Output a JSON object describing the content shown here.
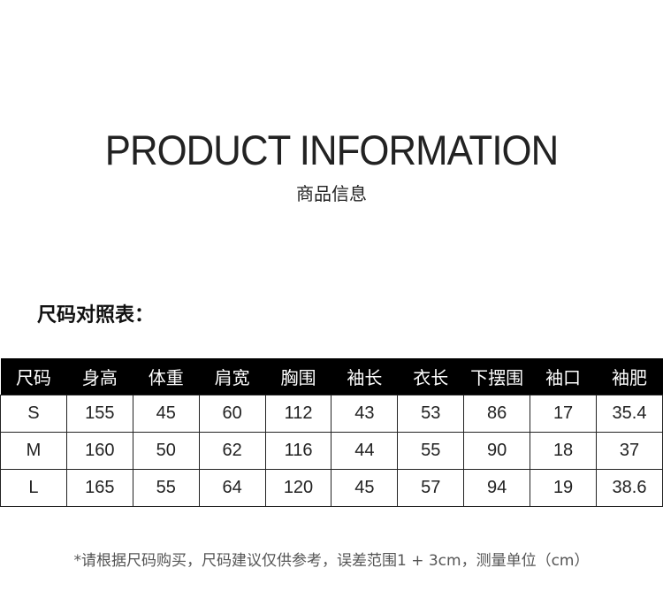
{
  "header": {
    "title": "PRODUCT INFORMATION",
    "subtitle": "商品信息"
  },
  "section_label": "尺码对照表：",
  "table": {
    "columns": [
      "尺码",
      "身高",
      "体重",
      "肩宽",
      "胸围",
      "袖长",
      "衣长",
      "下摆围",
      "袖口",
      "袖肥"
    ],
    "rows": [
      [
        "S",
        "155",
        "45",
        "60",
        "112",
        "43",
        "53",
        "86",
        "17",
        "35.4"
      ],
      [
        "M",
        "160",
        "50",
        "62",
        "116",
        "44",
        "55",
        "90",
        "18",
        "37"
      ],
      [
        "L",
        "165",
        "55",
        "64",
        "120",
        "45",
        "57",
        "94",
        "19",
        "38.6"
      ]
    ]
  },
  "note": "*请根据尺码购买，尺码建议仅供参考，误差范围1 + 3cm，测量单位（cm）"
}
